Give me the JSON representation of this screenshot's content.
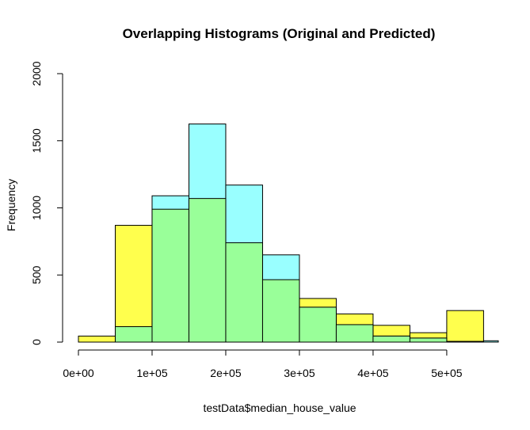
{
  "chart_data": {
    "type": "bar",
    "title": "Overlapping Histograms (Original and Predicted)",
    "xlabel": "testData$median_house_value",
    "ylabel": "Frequency",
    "xlim": [
      0,
      570000
    ],
    "ylim": [
      0,
      2000
    ],
    "x_ticks": [
      0,
      100000,
      200000,
      300000,
      400000,
      500000
    ],
    "x_tick_labels": [
      "0e+00",
      "1e+05",
      "2e+05",
      "3e+05",
      "4e+05",
      "5e+05"
    ],
    "y_ticks": [
      0,
      500,
      1000,
      1500,
      2000
    ],
    "y_tick_labels": [
      "0",
      "500",
      "1000",
      "1500",
      "2000"
    ],
    "grid": false,
    "legend": "none",
    "bins": [
      [
        0,
        50000
      ],
      [
        50000,
        100000
      ],
      [
        100000,
        150000
      ],
      [
        150000,
        200000
      ],
      [
        200000,
        250000
      ],
      [
        250000,
        300000
      ],
      [
        300000,
        350000
      ],
      [
        350000,
        400000
      ],
      [
        400000,
        450000
      ],
      [
        450000,
        500000
      ],
      [
        500000,
        550000
      ],
      [
        550000,
        600000
      ]
    ],
    "series": [
      {
        "color": "#ffff4d",
        "values": [
          45,
          870,
          990,
          1070,
          740,
          465,
          325,
          210,
          125,
          70,
          235,
          0
        ]
      },
      {
        "color": "#99ffff",
        "values": [
          0,
          115,
          1090,
          1625,
          1170,
          650,
          260,
          130,
          45,
          30,
          5,
          10
        ]
      }
    ],
    "overlap_color": "#99ff99"
  }
}
